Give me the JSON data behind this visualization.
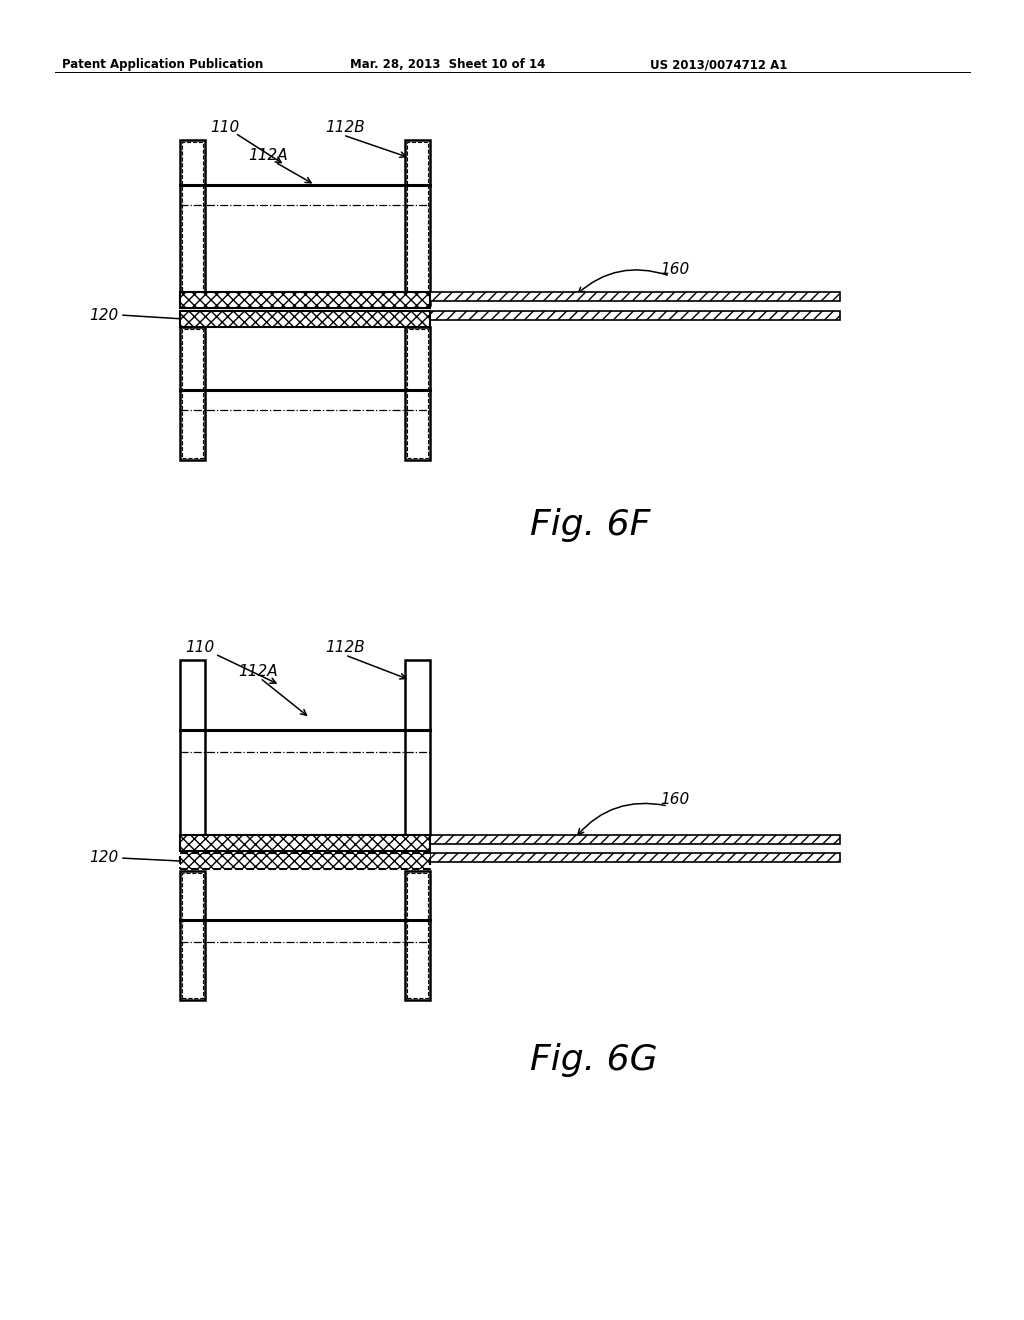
{
  "bg_color": "#ffffff",
  "header_left": "Patent Application Publication",
  "header_mid": "Mar. 28, 2013  Sheet 10 of 14",
  "header_right": "US 2013/0074712 A1",
  "label_110": "110",
  "label_112A": "112A",
  "label_112B": "112B",
  "label_120": "120",
  "label_160": "160"
}
